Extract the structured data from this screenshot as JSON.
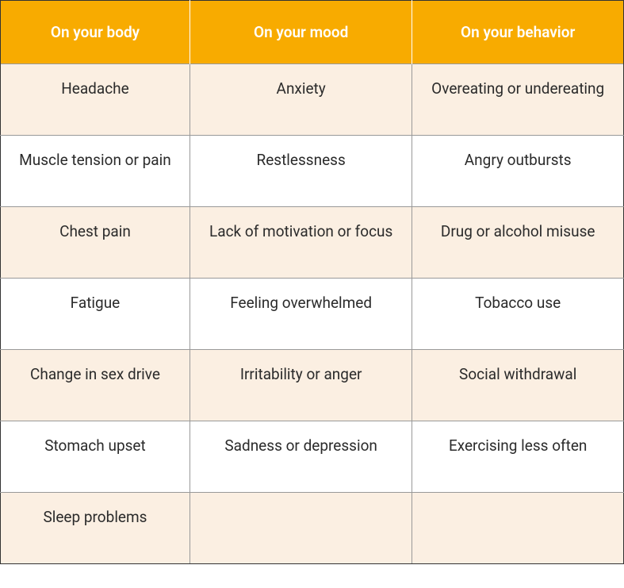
{
  "table": {
    "type": "table",
    "header_bg": "#f8ab00",
    "header_text_color": "#ffffff",
    "row_odd_bg": "#fbefe2",
    "row_even_bg": "#ffffff",
    "border_color_outer": "#333333",
    "border_color_inner": "#999999",
    "cell_text_color": "#2b2b2b",
    "header_fontsize": 19,
    "cell_fontsize": 19,
    "columns": [
      "On your body",
      "On your mood",
      "On your behavior"
    ],
    "rows": [
      [
        "Headache",
        "Anxiety",
        "Overeating or undereating"
      ],
      [
        "Muscle tension or pain",
        "Restlessness",
        "Angry outbursts"
      ],
      [
        "Chest pain",
        "Lack of motivation or focus",
        "Drug or alcohol misuse"
      ],
      [
        "Fatigue",
        "Feeling overwhelmed",
        "Tobacco use"
      ],
      [
        "Change in sex drive",
        "Irritability or anger",
        "Social withdrawal"
      ],
      [
        "Stomach upset",
        "Sadness or depression",
        "Exercising less often"
      ],
      [
        "Sleep problems",
        "",
        ""
      ]
    ]
  }
}
